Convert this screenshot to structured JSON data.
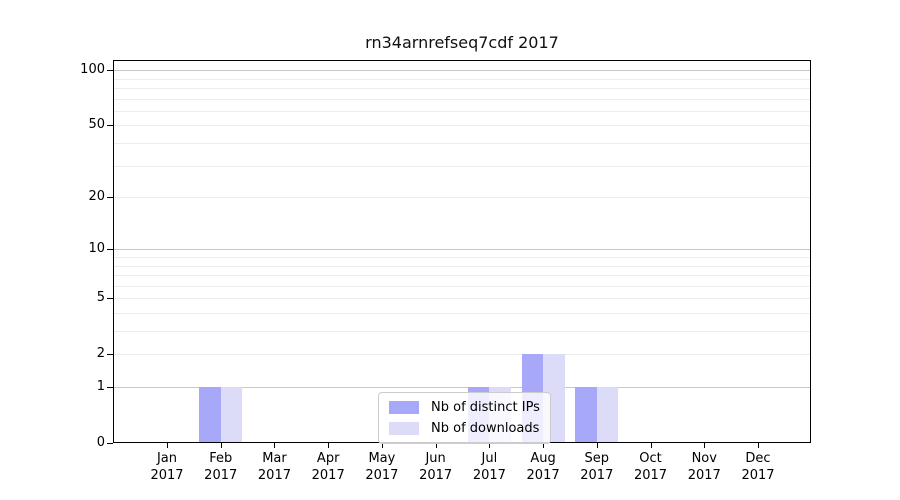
{
  "figure": {
    "title": "rn34arnrefseq7cdf 2017"
  },
  "chart_data": {
    "type": "bar",
    "title": "rn34arnrefseq7cdf 2017",
    "categories": [
      "Jan 2017",
      "Feb 2017",
      "Mar 2017",
      "Apr 2017",
      "May 2017",
      "Jun 2017",
      "Jul 2017",
      "Aug 2017",
      "Sep 2017",
      "Oct 2017",
      "Nov 2017",
      "Dec 2017"
    ],
    "x_months": [
      "Jan",
      "Feb",
      "Mar",
      "Apr",
      "May",
      "Jun",
      "Jul",
      "Aug",
      "Sep",
      "Oct",
      "Nov",
      "Dec"
    ],
    "x_year": "2017",
    "series": [
      {
        "name": "Nb of distinct IPs",
        "color": "#a8a8f8",
        "values": [
          0,
          1,
          0,
          0,
          0,
          0,
          1,
          2,
          1,
          0,
          0,
          0
        ]
      },
      {
        "name": "Nb of downloads",
        "color": "#dcdcf8",
        "values": [
          0,
          1,
          0,
          0,
          0,
          0,
          1,
          2,
          1,
          0,
          0,
          0
        ]
      }
    ],
    "xlabel": "",
    "ylabel": "",
    "yscale": "log1p",
    "ylim": [
      0,
      114
    ],
    "yticks": [
      0,
      1,
      2,
      5,
      10,
      20,
      50,
      100
    ],
    "grid_major": [
      1,
      10,
      100
    ],
    "grid_minor": [
      2,
      3,
      4,
      5,
      6,
      7,
      8,
      9,
      20,
      30,
      40,
      50,
      60,
      70,
      80,
      90
    ],
    "grid": true,
    "legend": {
      "location": "lower center",
      "entries": [
        "Nb of distinct IPs",
        "Nb of downloads"
      ]
    }
  }
}
